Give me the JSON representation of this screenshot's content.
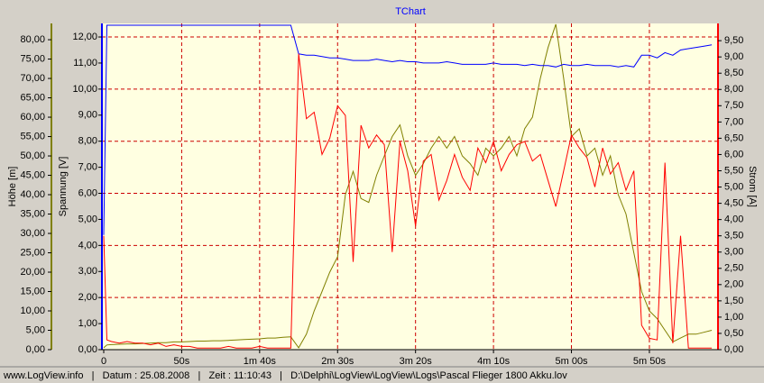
{
  "chart_data": {
    "type": "line",
    "title": "TChart",
    "y_label": "Höhe  [m]",
    "y2_label": "Spannung  [V]",
    "y3_label": "Strom  [A]",
    "x": [
      0,
      2,
      5,
      10,
      15,
      20,
      25,
      30,
      35,
      40,
      45,
      50,
      55,
      60,
      65,
      70,
      75,
      80,
      85,
      90,
      95,
      100,
      105,
      110,
      115,
      120,
      125,
      130,
      135,
      140,
      145,
      150,
      155,
      160,
      165,
      170,
      175,
      180,
      185,
      190,
      195,
      200,
      205,
      210,
      215,
      220,
      225,
      230,
      235,
      240,
      245,
      250,
      255,
      260,
      265,
      270,
      275,
      280,
      285,
      290,
      295,
      300,
      305,
      310,
      315,
      320,
      325,
      330,
      335,
      340,
      345,
      350,
      355,
      360,
      365,
      370,
      375,
      380,
      385,
      390
    ],
    "xlim": [
      0,
      394
    ],
    "xticks": [
      {
        "value": 0,
        "label": "0"
      },
      {
        "value": 50,
        "label": "50s"
      },
      {
        "value": 100,
        "label": "1m 40s"
      },
      {
        "value": 150,
        "label": "2m 30s"
      },
      {
        "value": 200,
        "label": "3m 20s"
      },
      {
        "value": 250,
        "label": "4m 10s"
      },
      {
        "value": 300,
        "label": "5m 00s"
      },
      {
        "value": 350,
        "label": "5m 50s"
      }
    ],
    "ylim": [
      0,
      84.2
    ],
    "yticks": [
      {
        "value": 0,
        "label": "0,00"
      },
      {
        "value": 5,
        "label": "5,00"
      },
      {
        "value": 10,
        "label": "10,00"
      },
      {
        "value": 15,
        "label": "15,00"
      },
      {
        "value": 20,
        "label": "20,00"
      },
      {
        "value": 25,
        "label": "25,00"
      },
      {
        "value": 30,
        "label": "30,00"
      },
      {
        "value": 35,
        "label": "35,00"
      },
      {
        "value": 40,
        "label": "40,00"
      },
      {
        "value": 45,
        "label": "45,00"
      },
      {
        "value": 50,
        "label": "50,00"
      },
      {
        "value": 55,
        "label": "55,00"
      },
      {
        "value": 60,
        "label": "60,00"
      },
      {
        "value": 65,
        "label": "65,00"
      },
      {
        "value": 70,
        "label": "70,00"
      },
      {
        "value": 75,
        "label": "75,00"
      },
      {
        "value": 80,
        "label": "80,00"
      }
    ],
    "y2lim": [
      0,
      12.52
    ],
    "y2ticks": [
      {
        "value": 0,
        "label": "0,00"
      },
      {
        "value": 1,
        "label": "1,00"
      },
      {
        "value": 2,
        "label": "2,00"
      },
      {
        "value": 3,
        "label": "3,00"
      },
      {
        "value": 4,
        "label": "4,00"
      },
      {
        "value": 5,
        "label": "5,00"
      },
      {
        "value": 6,
        "label": "6,00"
      },
      {
        "value": 7,
        "label": "7,00"
      },
      {
        "value": 8,
        "label": "8,00"
      },
      {
        "value": 9,
        "label": "9,00"
      },
      {
        "value": 10,
        "label": "10,00"
      },
      {
        "value": 11,
        "label": "11,00"
      },
      {
        "value": 12,
        "label": "12,00"
      }
    ],
    "y3lim": [
      0,
      10.03
    ],
    "y3ticks": [
      {
        "value": 0,
        "label": "0,00"
      },
      {
        "value": 0.5,
        "label": "0,50"
      },
      {
        "value": 1,
        "label": "1,00"
      },
      {
        "value": 1.5,
        "label": "1,50"
      },
      {
        "value": 2,
        "label": "2,00"
      },
      {
        "value": 2.5,
        "label": "2,50"
      },
      {
        "value": 3,
        "label": "3,00"
      },
      {
        "value": 3.5,
        "label": "3,50"
      },
      {
        "value": 4,
        "label": "4,00"
      },
      {
        "value": 4.5,
        "label": "4,50"
      },
      {
        "value": 5,
        "label": "5,00"
      },
      {
        "value": 5.5,
        "label": "5,50"
      },
      {
        "value": 6,
        "label": "6,00"
      },
      {
        "value": 6.5,
        "label": "6,50"
      },
      {
        "value": 7,
        "label": "7,00"
      },
      {
        "value": 7.5,
        "label": "7,50"
      },
      {
        "value": 8,
        "label": "8,00"
      },
      {
        "value": 8.5,
        "label": "8,50"
      },
      {
        "value": 9,
        "label": "9,00"
      },
      {
        "value": 9.5,
        "label": "9,50"
      }
    ],
    "grid": true,
    "series": [
      {
        "name": "Höhe",
        "color": "#808000",
        "axis": "y",
        "values": [
          0.5,
          1.2,
          1.3,
          1.4,
          1.5,
          1.5,
          1.6,
          1.7,
          1.8,
          1.8,
          2.0,
          2.0,
          2.1,
          2.2,
          2.2,
          2.3,
          2.3,
          2.4,
          2.5,
          2.6,
          2.7,
          2.8,
          3.0,
          3.0,
          3.2,
          3.3,
          0.5,
          4,
          10,
          15,
          20,
          24,
          40,
          46,
          39,
          38,
          45,
          50,
          55,
          58,
          50,
          45,
          48,
          52,
          55,
          52,
          55,
          50,
          48,
          45,
          52,
          50,
          52,
          55,
          50,
          57,
          60,
          70,
          78,
          84,
          70,
          55,
          57,
          50,
          52,
          45,
          50,
          40,
          35,
          25,
          15,
          10,
          8,
          5,
          2,
          3,
          4,
          4,
          4.5,
          5
        ]
      },
      {
        "name": "Spannung",
        "color": "#0000ff",
        "axis": "y2",
        "values": [
          4.4,
          12.45,
          12.45,
          12.45,
          12.45,
          12.45,
          12.45,
          12.45,
          12.45,
          12.45,
          12.45,
          12.45,
          12.45,
          12.45,
          12.45,
          12.45,
          12.45,
          12.45,
          12.45,
          12.45,
          12.45,
          12.45,
          12.45,
          12.45,
          12.45,
          12.45,
          11.35,
          11.3,
          11.3,
          11.25,
          11.2,
          11.2,
          11.15,
          11.1,
          11.1,
          11.1,
          11.15,
          11.1,
          11.05,
          11.1,
          11.05,
          11.05,
          11.0,
          11.0,
          11.0,
          11.05,
          11.0,
          10.95,
          10.95,
          10.95,
          10.95,
          11.0,
          10.95,
          10.95,
          10.95,
          10.9,
          10.95,
          10.9,
          10.9,
          10.85,
          10.95,
          10.9,
          10.9,
          10.95,
          10.9,
          10.9,
          10.9,
          10.85,
          10.9,
          10.85,
          11.3,
          11.3,
          11.2,
          11.4,
          11.3,
          11.5,
          11.55,
          11.6,
          11.65,
          11.7
        ]
      },
      {
        "name": "Strom",
        "color": "#ff0000",
        "axis": "y3",
        "values": [
          3.5,
          0.3,
          0.25,
          0.2,
          0.25,
          0.2,
          0.2,
          0.15,
          0.2,
          0.1,
          0.15,
          0.1,
          0.1,
          0.05,
          0.05,
          0.05,
          0.05,
          0.1,
          0.05,
          0.05,
          0.05,
          0.1,
          0.05,
          0.05,
          0.05,
          0.05,
          9.1,
          7.1,
          7.3,
          6.0,
          6.5,
          7.5,
          7.2,
          2.7,
          6.9,
          6.2,
          6.6,
          6.3,
          3.0,
          6.4,
          5.5,
          3.8,
          5.8,
          6.0,
          4.6,
          5.2,
          6.0,
          5.3,
          4.9,
          6.2,
          5.75,
          6.4,
          5.5,
          6.0,
          6.3,
          6.4,
          5.8,
          6.0,
          5.2,
          4.4,
          5.5,
          6.6,
          6.2,
          5.9,
          5.0,
          6.2,
          5.4,
          5.75,
          4.9,
          5.5,
          0.75,
          0.35,
          0.3,
          5.75,
          0.2,
          3.5,
          0.05,
          0.05,
          0.05,
          0.05
        ]
      }
    ]
  },
  "status_bar": "www.LogView.info   |   Datum : 25.08.2008   |   Zeit : 11:10:43   |   D:\\Delphi\\LogView\\LogView\\Logs\\Pascal Flieger 1800 Akku.lov"
}
